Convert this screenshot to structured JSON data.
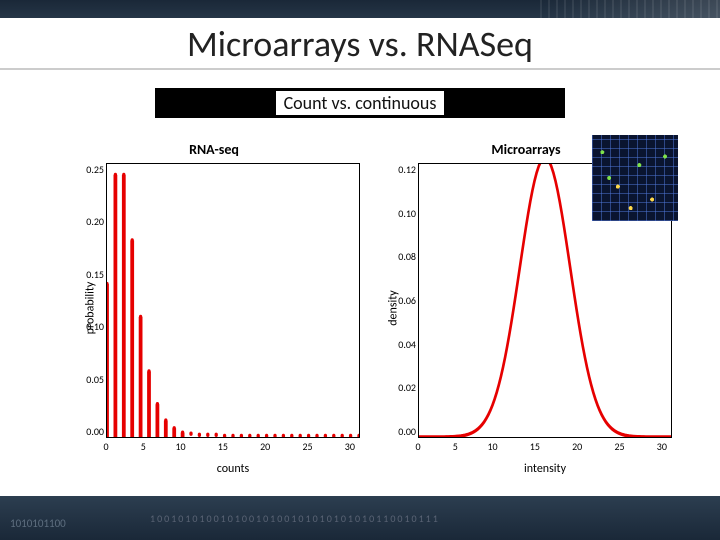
{
  "slide": {
    "title": "Microarrays vs. RNASeq",
    "subtitle": "Count vs. continuous",
    "footer_binary": "1010101100"
  },
  "left_chart": {
    "type": "bar",
    "title": "RNA-seq",
    "ylabel": "probability",
    "xlabel": "counts",
    "xlim": [
      0,
      30
    ],
    "ylim": [
      0,
      0.25
    ],
    "ytick_labels": [
      "0.00",
      "0.05",
      "0.10",
      "0.15",
      "0.20",
      "0.25"
    ],
    "xtick_labels": [
      "0",
      "5",
      "10",
      "15",
      "20",
      "25",
      "30"
    ],
    "bar_color": "#e60000",
    "point_color": "#e60000",
    "bar_width": 0.45,
    "bars": [
      0.14,
      0.24,
      0.24,
      0.18,
      0.11,
      0.06,
      0.03,
      0.015,
      0.008,
      0.004
    ],
    "points": [
      0.14,
      0.24,
      0.24,
      0.18,
      0.11,
      0.06,
      0.03,
      0.015,
      0.008,
      0.004,
      0.003,
      0.002,
      0.002,
      0.002,
      0.001,
      0.001,
      0.001,
      0.001,
      0.001,
      0.001,
      0.001,
      0.001,
      0.001,
      0.001,
      0.001,
      0.001,
      0.001,
      0.001,
      0.001,
      0.001,
      0.001
    ]
  },
  "right_chart": {
    "type": "line",
    "title": "Microarrays",
    "ylabel": "density",
    "xlabel": "intensity",
    "xlim": [
      0,
      30
    ],
    "ylim": [
      0,
      0.13
    ],
    "ytick_labels": [
      "0.00",
      "0.02",
      "0.04",
      "0.06",
      "0.08",
      "0.10",
      "0.12"
    ],
    "xtick_labels": [
      "0",
      "5",
      "10",
      "15",
      "20",
      "25",
      "30"
    ],
    "line_color": "#e60000",
    "line_width": 2.5,
    "mean": 15,
    "sd": 3,
    "samples": [
      0,
      1,
      2,
      3,
      4,
      5,
      6,
      7,
      8,
      9,
      10,
      11,
      12,
      13,
      14,
      15,
      16,
      17,
      18,
      19,
      20,
      21,
      22,
      23,
      24,
      25,
      26,
      27,
      28,
      29,
      30
    ]
  },
  "colors": {
    "background": "#ffffff",
    "header_gradient": [
      "#1a2838",
      "#2c3e50"
    ]
  }
}
